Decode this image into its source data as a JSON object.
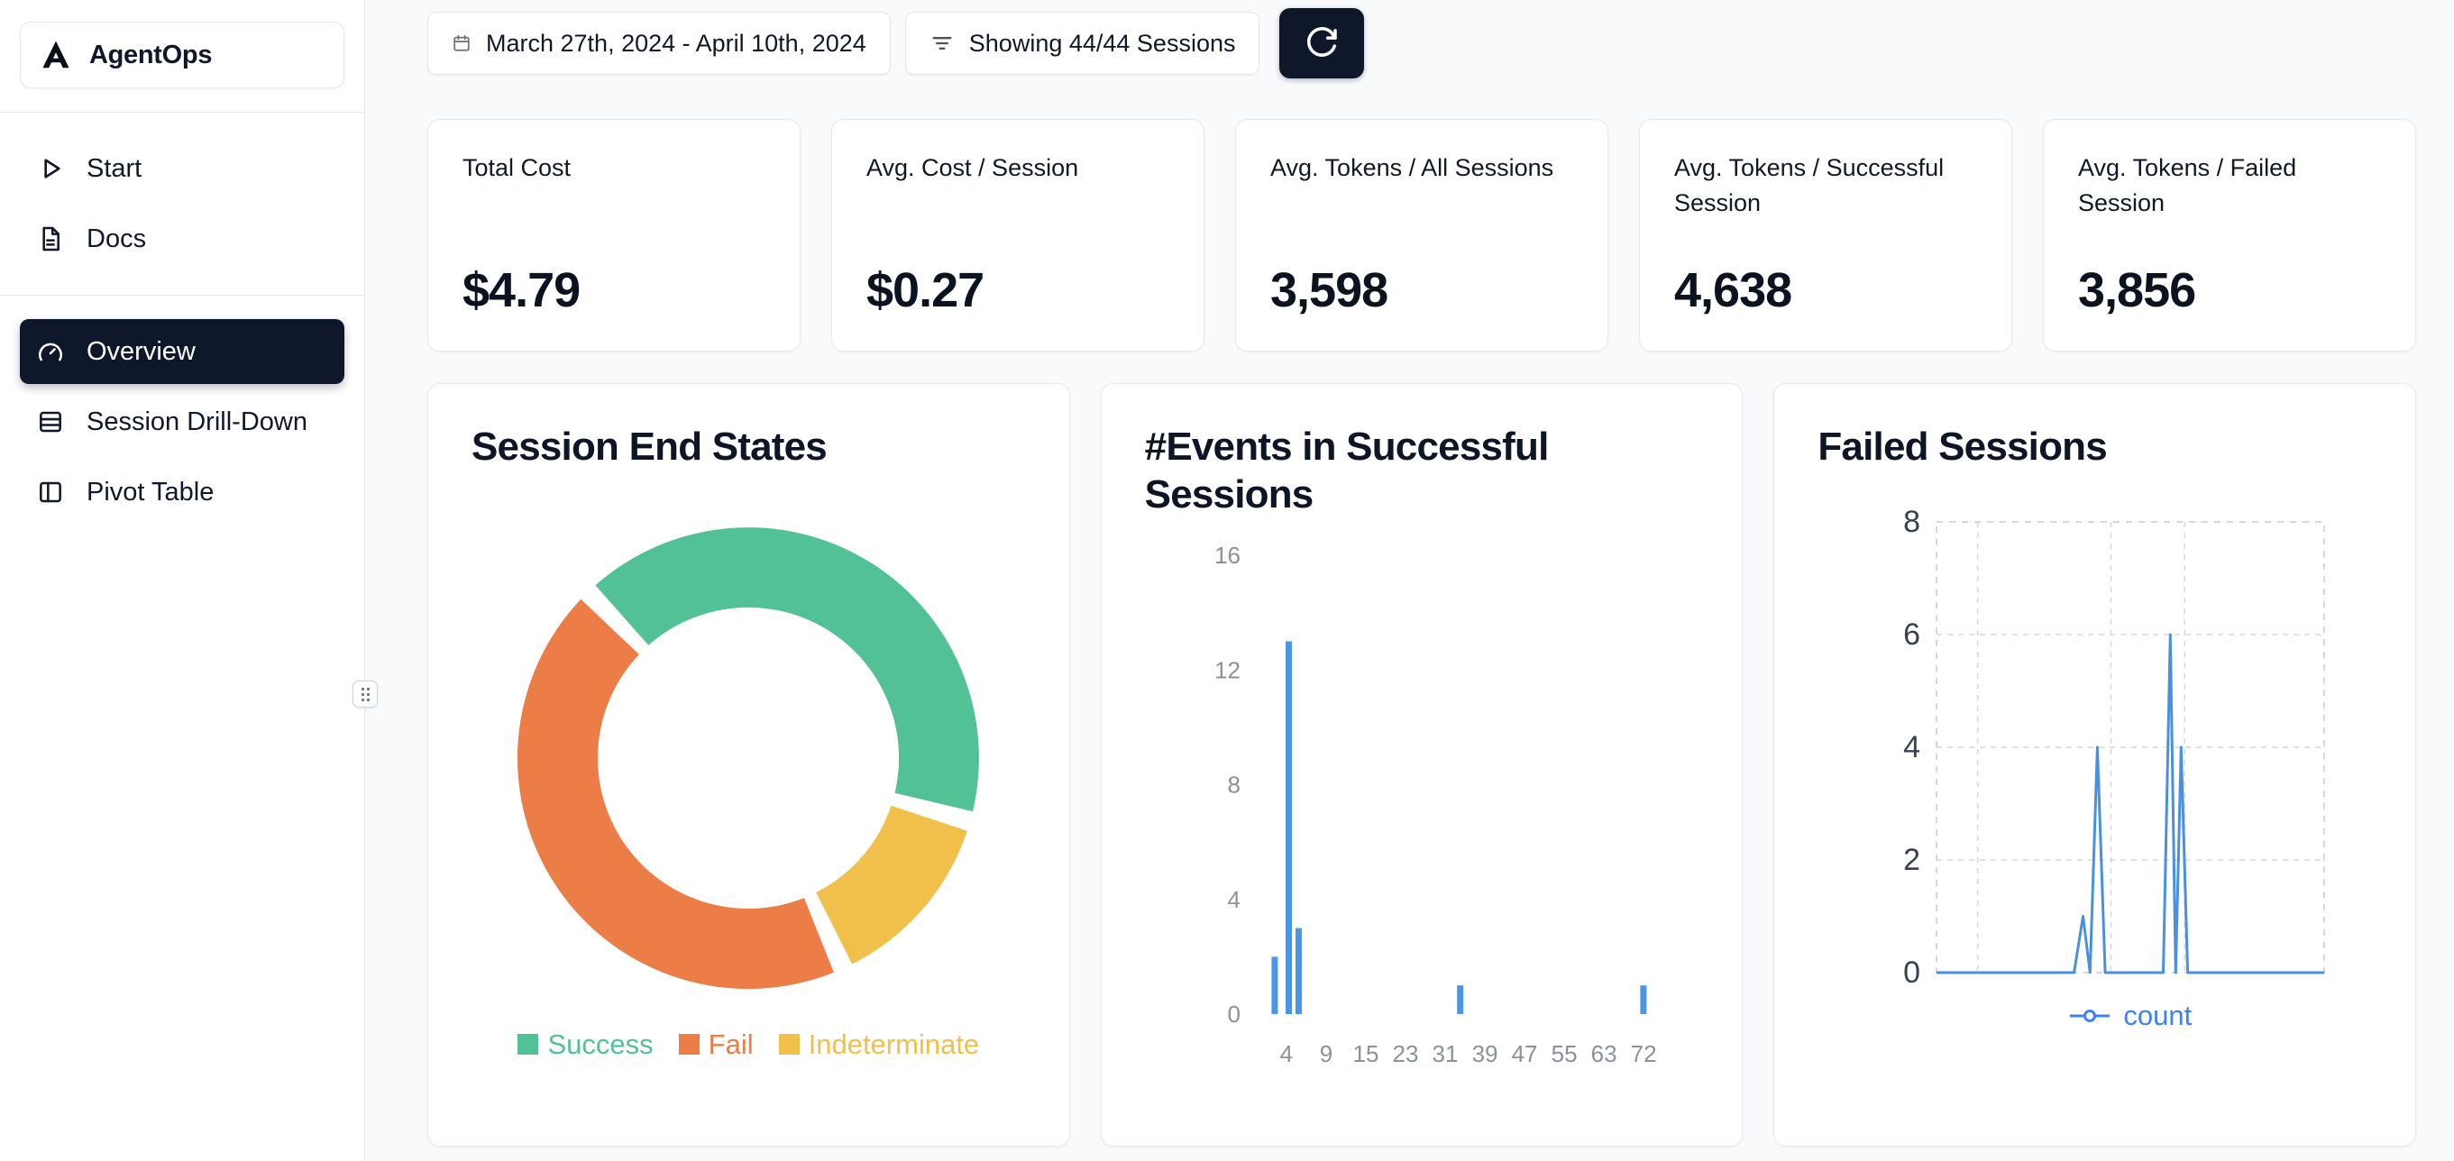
{
  "sidebar": {
    "logo_text": "AgentOps",
    "nav_top": [
      {
        "label": "Start",
        "icon": "play-icon"
      },
      {
        "label": "Docs",
        "icon": "docs-icon"
      }
    ],
    "nav_main": [
      {
        "label": "Overview",
        "icon": "gauge-icon",
        "active": true
      },
      {
        "label": "Session Drill-Down",
        "icon": "layout-list-icon",
        "active": false
      },
      {
        "label": "Pivot Table",
        "icon": "columns-icon",
        "active": false
      }
    ]
  },
  "topbar": {
    "date_range": "March 27th, 2024 - April 10th, 2024",
    "sessions_filter": "Showing 44/44 Sessions",
    "refresh_icon": "refresh-icon"
  },
  "stats": [
    {
      "label": "Total Cost",
      "value": "$4.79"
    },
    {
      "label": "Avg. Cost / Session",
      "value": "$0.27"
    },
    {
      "label": "Avg. Tokens / All Sessions",
      "value": "3,598"
    },
    {
      "label": "Avg. Tokens / Successful Session",
      "value": "4,638"
    },
    {
      "label": "Avg. Tokens / Failed Session",
      "value": "3,856"
    }
  ],
  "colors": {
    "active_nav_bg": "#0f172a",
    "accent_blue": "#3b82f6",
    "success_green": "#52c296",
    "fail_orange": "#ed7d46",
    "indeterminate_yellow": "#f0c04a"
  },
  "chart_data": [
    {
      "type": "pie",
      "title": "Session End States",
      "slices": [
        {
          "label": "Success",
          "value": 42,
          "color": "#52c296"
        },
        {
          "label": "Fail",
          "value": 45,
          "color": "#ed7d46"
        },
        {
          "label": "Indeterminate",
          "value": 13,
          "color": "#f0c04a"
        }
      ],
      "draw_order": [
        0,
        2,
        1
      ],
      "start_angle": 318.5,
      "pad_angle": 5,
      "donut_hole": 0.65,
      "legend_position": "bottom"
    },
    {
      "type": "bar",
      "title": "#Events in Successful Sessions",
      "xlabel": "",
      "ylabel": "",
      "x_ticks": [
        4,
        9,
        15,
        23,
        31,
        39,
        47,
        55,
        63,
        72
      ],
      "y_ticks": [
        0,
        4,
        8,
        12,
        16
      ],
      "ylim": [
        0,
        16
      ],
      "bars": [
        {
          "x": 3,
          "frac": 0.042,
          "count": 2
        },
        {
          "x": 4,
          "frac": 0.072,
          "count": 13
        },
        {
          "x": 5,
          "frac": 0.093,
          "count": 3
        },
        {
          "x": 39,
          "frac": 0.437,
          "count": 1
        },
        {
          "x": 72,
          "frac": 0.827,
          "count": 1
        }
      ],
      "bar_color": "#4b94e6",
      "grid": false
    },
    {
      "type": "line",
      "title": "Failed Sessions",
      "series": [
        {
          "name": "count",
          "color": "#4a90e2"
        }
      ],
      "y_ticks": [
        0,
        2,
        4,
        6,
        8
      ],
      "ylim": [
        0,
        8
      ],
      "points": [
        [
          0,
          0
        ],
        [
          0.355,
          0
        ],
        [
          0.378,
          1
        ],
        [
          0.396,
          0
        ],
        [
          0.415,
          4
        ],
        [
          0.435,
          0
        ],
        [
          0.585,
          0
        ],
        [
          0.603,
          6
        ],
        [
          0.617,
          0
        ],
        [
          0.631,
          4
        ],
        [
          0.648,
          0
        ],
        [
          1,
          0
        ]
      ],
      "grid": "dashed",
      "v_gridlines": [
        0.106,
        0.45,
        0.64
      ],
      "legend": {
        "label": "count",
        "color": "#3b82f6",
        "position": "bottom"
      }
    }
  ]
}
